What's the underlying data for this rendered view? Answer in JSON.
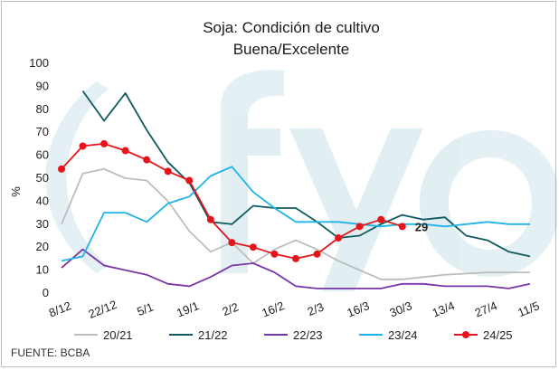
{
  "chart_data": {
    "type": "line",
    "title": "Soja: Condición de cultivo",
    "subtitle": "Buena/Excelente",
    "ylabel": "%",
    "xlabel": "",
    "ylim": [
      0,
      100
    ],
    "yticks": [
      0,
      10,
      20,
      30,
      40,
      50,
      60,
      70,
      80,
      90,
      100
    ],
    "grid": false,
    "legend_position": "bottom",
    "x_tick_labels": [
      "8/12",
      "22/12",
      "5/1",
      "19/1",
      "2/2",
      "16/2",
      "2/3",
      "16/3",
      "30/3",
      "13/4",
      "27/4",
      "11/5"
    ],
    "x_tick_positions": [
      0,
      14,
      28,
      42,
      56,
      70,
      84,
      98,
      112,
      126,
      140,
      154
    ],
    "x_unit_note": "días desde 8/12",
    "annotation": {
      "text": "29",
      "x": 112,
      "y": 29
    },
    "source": "FUENTE: BCBA",
    "series": [
      {
        "name": "20/21",
        "color": "#bdbdbd",
        "marker": false,
        "x": [
          0,
          7,
          14,
          21,
          28,
          35,
          42,
          49,
          56,
          63,
          70,
          77,
          84,
          91,
          98,
          105,
          112,
          126,
          140,
          154
        ],
        "y": [
          30,
          52,
          54,
          50,
          49,
          40,
          27,
          18,
          22,
          13,
          19,
          23,
          19,
          14,
          10,
          6,
          6,
          8,
          9,
          9
        ]
      },
      {
        "name": "21/22",
        "color": "#0e5a5f",
        "marker": false,
        "x": [
          7,
          14,
          21,
          28,
          35,
          42,
          49,
          56,
          63,
          70,
          77,
          84,
          91,
          98,
          105,
          112,
          119,
          126,
          133,
          140,
          147,
          154
        ],
        "y": [
          88,
          75,
          87,
          71,
          57,
          48,
          31,
          30,
          38,
          37,
          37,
          31,
          24,
          25,
          30,
          34,
          32,
          33,
          25,
          23,
          18,
          16
        ]
      },
      {
        "name": "22/23",
        "color": "#7a35a6",
        "marker": false,
        "x": [
          0,
          7,
          14,
          21,
          28,
          35,
          42,
          49,
          56,
          63,
          70,
          77,
          84,
          91,
          98,
          105,
          112,
          119,
          126,
          133,
          140,
          147,
          154
        ],
        "y": [
          11,
          19,
          12,
          10,
          8,
          4,
          3,
          7,
          12,
          13,
          9,
          3,
          2,
          2,
          2,
          2,
          4,
          4,
          3,
          3,
          3,
          2,
          4
        ]
      },
      {
        "name": "23/24",
        "color": "#1fb3e6",
        "marker": false,
        "x": [
          0,
          7,
          14,
          21,
          28,
          35,
          42,
          49,
          56,
          63,
          70,
          77,
          84,
          91,
          98,
          105,
          112,
          119,
          126,
          133,
          140,
          147,
          154
        ],
        "y": [
          14,
          16,
          35,
          35,
          31,
          39,
          42,
          51,
          55,
          44,
          37,
          31,
          31,
          31,
          30,
          29,
          30,
          30,
          29,
          30,
          31,
          30,
          30
        ]
      },
      {
        "name": "24/25",
        "color": "#e8141c",
        "marker": true,
        "x": [
          0,
          7,
          14,
          21,
          28,
          35,
          42,
          49,
          56,
          63,
          70,
          77,
          84,
          91,
          98,
          105,
          112
        ],
        "y": [
          54,
          64,
          65,
          62,
          58,
          53,
          49,
          32,
          22,
          20,
          17,
          15,
          17,
          24,
          29,
          32,
          29
        ]
      }
    ]
  }
}
